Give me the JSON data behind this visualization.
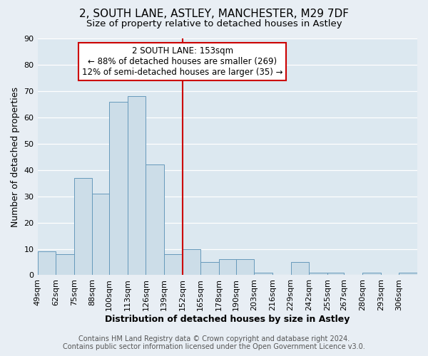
{
  "title": "2, SOUTH LANE, ASTLEY, MANCHESTER, M29 7DF",
  "subtitle": "Size of property relative to detached houses in Astley",
  "xlabel": "Distribution of detached houses by size in Astley",
  "ylabel": "Number of detached properties",
  "footer_line1": "Contains HM Land Registry data © Crown copyright and database right 2024.",
  "footer_line2": "Contains public sector information licensed under the Open Government Licence v3.0.",
  "bin_labels": [
    "49sqm",
    "62sqm",
    "75sqm",
    "88sqm",
    "100sqm",
    "113sqm",
    "126sqm",
    "139sqm",
    "152sqm",
    "165sqm",
    "178sqm",
    "190sqm",
    "203sqm",
    "216sqm",
    "229sqm",
    "242sqm",
    "255sqm",
    "267sqm",
    "280sqm",
    "293sqm",
    "306sqm"
  ],
  "bin_edges": [
    49,
    62,
    75,
    88,
    100,
    113,
    126,
    139,
    152,
    165,
    178,
    190,
    203,
    216,
    229,
    242,
    255,
    267,
    280,
    293,
    306
  ],
  "bar_heights": [
    9,
    8,
    37,
    31,
    66,
    68,
    42,
    8,
    10,
    5,
    6,
    6,
    1,
    0,
    5,
    1,
    1,
    0,
    1,
    0,
    1
  ],
  "bar_color": "#ccdde8",
  "bar_edge_color": "#6699bb",
  "reference_line_x": 152,
  "reference_line_color": "#cc0000",
  "ylim": [
    0,
    90
  ],
  "yticks": [
    0,
    10,
    20,
    30,
    40,
    50,
    60,
    70,
    80,
    90
  ],
  "annotation_line1": "2 SOUTH LANE: 153sqm",
  "annotation_line2": "← 88% of detached houses are smaller (269)",
  "annotation_line3": "12% of semi-detached houses are larger (35) →",
  "annotation_box_color": "#ffffff",
  "annotation_box_edge_color": "#cc0000",
  "background_color": "#e8eef4",
  "plot_bg_color": "#dce8f0",
  "grid_color": "#ffffff",
  "title_fontsize": 11,
  "subtitle_fontsize": 9.5,
  "axis_label_fontsize": 9,
  "tick_fontsize": 8,
  "annotation_fontsize": 8.5,
  "footer_fontsize": 7
}
